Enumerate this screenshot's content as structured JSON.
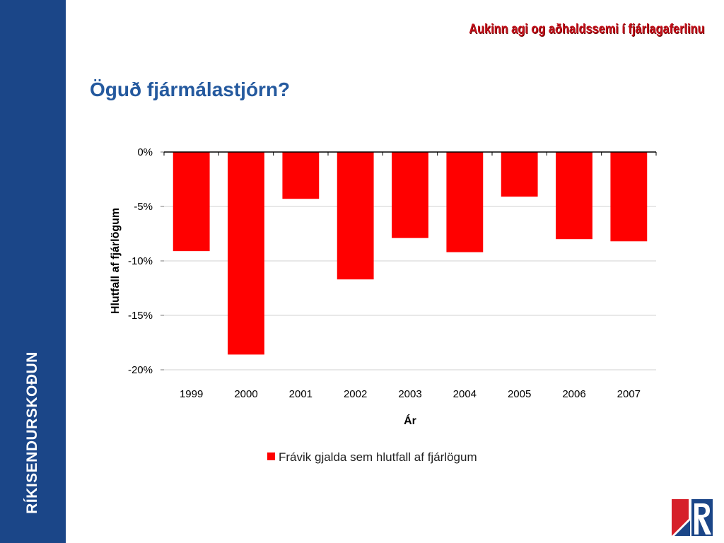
{
  "sidebar": {
    "org_name": "RÍKISENDURSKOÐUN"
  },
  "header": {
    "tagline": "Aukinn agi og aðhaldssemi í fjárlagaferlinu"
  },
  "page": {
    "title": "Öguð fjármálastjórn?"
  },
  "logo": {
    "icon": "rikisendurskodun-logo-icon"
  },
  "colors": {
    "sidebar": "#1b4688",
    "title": "#24599e",
    "tagline": "#c4111b",
    "bar": "#ff0000"
  },
  "chart_data": {
    "type": "bar",
    "categories": [
      "1999",
      "2000",
      "2001",
      "2002",
      "2003",
      "2004",
      "2005",
      "2006",
      "2007"
    ],
    "series": [
      {
        "name": "Frávik gjalda sem hlutfall af fjárlögum",
        "values": [
          -9.1,
          -18.6,
          -4.3,
          -11.7,
          -7.9,
          -9.2,
          -4.1,
          -8.0,
          -8.2
        ]
      }
    ],
    "yticks": [
      "0%",
      "-5%",
      "-10%",
      "-15%",
      "-20%"
    ],
    "ylim": [
      -20,
      0
    ],
    "xlabel": "Ár",
    "ylabel": "Hlutfall af fjárlögum",
    "grid": true,
    "legend": "bottom"
  }
}
